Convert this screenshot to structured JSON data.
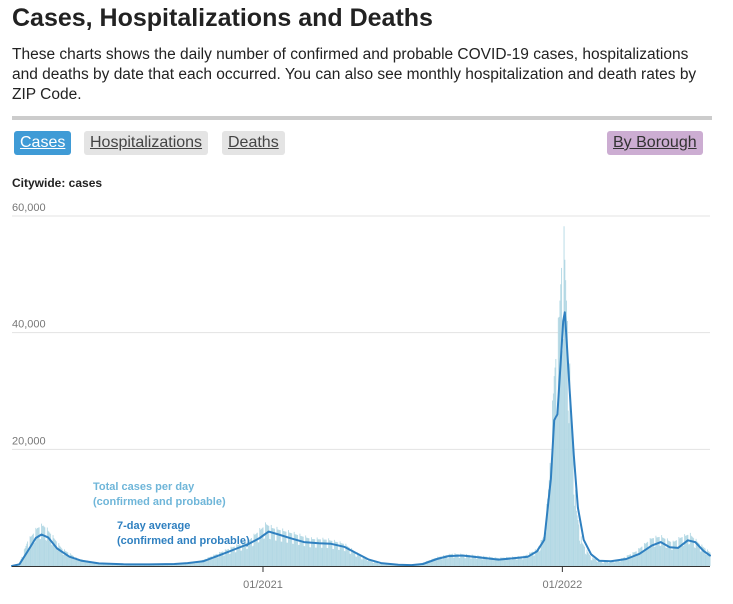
{
  "page": {
    "title": "Cases, Hospitalizations and Deaths",
    "intro": "These charts shows the daily number of confirmed and probable COVID-19 cases, hospitalizations and deaths by date that each occurred. You can also see monthly hospitalization and death rates by ZIP Code."
  },
  "tabs": {
    "cases": "Cases",
    "hospitalizations": "Hospitalizations",
    "deaths": "Deaths",
    "by_borough": "By Borough",
    "active": "cases"
  },
  "chart_title": "Citywide: cases",
  "colors": {
    "accent": "#3f9bd6",
    "line": "#2f80c0",
    "bars": "#b3d8e4",
    "bar_label": "#6fb6d9",
    "tab_inactive": "#e4e4e4",
    "tab_borough": "#ccadd2",
    "grid": "#e3e3e3"
  },
  "chart_data": {
    "type": "area",
    "x_start": "2020-03-01",
    "x_end": "2022-06-30",
    "ylim": [
      0,
      60000
    ],
    "yticks": [
      {
        "value": 20000,
        "label": "20,000"
      },
      {
        "value": 40000,
        "label": "40,000"
      },
      {
        "value": 60000,
        "label": "60,000"
      }
    ],
    "xticks": [
      {
        "date": "2021-01-01",
        "label": "01/2021"
      },
      {
        "date": "2022-01-01",
        "label": "01/2022"
      }
    ],
    "grid": true,
    "series": [
      {
        "name": "Total cases per day\n(confirmed and probable)",
        "kind": "daily_bars",
        "anchors": [
          [
            "2020-03-01",
            0
          ],
          [
            "2020-03-10",
            400
          ],
          [
            "2020-03-20",
            4000
          ],
          [
            "2020-04-01",
            6200
          ],
          [
            "2020-04-08",
            6600
          ],
          [
            "2020-04-15",
            5600
          ],
          [
            "2020-05-01",
            2800
          ],
          [
            "2020-05-20",
            1200
          ],
          [
            "2020-06-15",
            400
          ],
          [
            "2020-08-01",
            250
          ],
          [
            "2020-09-15",
            350
          ],
          [
            "2020-10-15",
            700
          ],
          [
            "2020-11-15",
            2500
          ],
          [
            "2020-12-15",
            4200
          ],
          [
            "2021-01-05",
            6800
          ],
          [
            "2021-01-12",
            6200
          ],
          [
            "2021-02-01",
            5500
          ],
          [
            "2021-03-01",
            4400
          ],
          [
            "2021-03-20",
            4300
          ],
          [
            "2021-04-10",
            3600
          ],
          [
            "2021-05-01",
            1600
          ],
          [
            "2021-05-20",
            500
          ],
          [
            "2021-06-20",
            150
          ],
          [
            "2021-07-10",
            300
          ],
          [
            "2021-08-01",
            1400
          ],
          [
            "2021-08-20",
            2000
          ],
          [
            "2021-09-10",
            1800
          ],
          [
            "2021-10-15",
            1300
          ],
          [
            "2021-11-15",
            1600
          ],
          [
            "2021-12-01",
            2700
          ],
          [
            "2021-12-10",
            5000
          ],
          [
            "2021-12-16",
            14000
          ],
          [
            "2021-12-22",
            31000
          ],
          [
            "2021-12-27",
            38000
          ],
          [
            "2022-01-02",
            54000
          ],
          [
            "2022-01-04",
            50000
          ],
          [
            "2022-01-07",
            40000
          ],
          [
            "2022-01-12",
            25000
          ],
          [
            "2022-01-18",
            9000
          ],
          [
            "2022-01-25",
            3800
          ],
          [
            "2022-02-05",
            1400
          ],
          [
            "2022-02-20",
            650
          ],
          [
            "2022-03-10",
            900
          ],
          [
            "2022-04-01",
            2400
          ],
          [
            "2022-04-20",
            4500
          ],
          [
            "2022-05-01",
            4800
          ],
          [
            "2022-05-15",
            3800
          ],
          [
            "2022-05-25",
            4600
          ],
          [
            "2022-06-05",
            5200
          ],
          [
            "2022-06-18",
            3500
          ],
          [
            "2022-06-30",
            2200
          ]
        ]
      },
      {
        "name": "7-day average\n(confirmed and probable)",
        "kind": "line",
        "points": [
          [
            "2020-03-01",
            0
          ],
          [
            "2020-03-10",
            300
          ],
          [
            "2020-03-20",
            2500
          ],
          [
            "2020-03-30",
            4800
          ],
          [
            "2020-04-06",
            5400
          ],
          [
            "2020-04-14",
            4900
          ],
          [
            "2020-04-25",
            3000
          ],
          [
            "2020-05-10",
            1600
          ],
          [
            "2020-05-25",
            900
          ],
          [
            "2020-06-15",
            450
          ],
          [
            "2020-07-15",
            300
          ],
          [
            "2020-08-15",
            280
          ],
          [
            "2020-09-15",
            350
          ],
          [
            "2020-10-01",
            500
          ],
          [
            "2020-10-20",
            800
          ],
          [
            "2020-11-10",
            1900
          ],
          [
            "2020-11-30",
            3000
          ],
          [
            "2020-12-15",
            3800
          ],
          [
            "2020-12-28",
            4800
          ],
          [
            "2021-01-08",
            5900
          ],
          [
            "2021-01-20",
            5400
          ],
          [
            "2021-02-05",
            4700
          ],
          [
            "2021-02-20",
            4100
          ],
          [
            "2021-03-10",
            3900
          ],
          [
            "2021-03-25",
            3800
          ],
          [
            "2021-04-10",
            3300
          ],
          [
            "2021-04-25",
            2200
          ],
          [
            "2021-05-10",
            1100
          ],
          [
            "2021-05-25",
            500
          ],
          [
            "2021-06-15",
            200
          ],
          [
            "2021-07-01",
            150
          ],
          [
            "2021-07-15",
            350
          ],
          [
            "2021-08-01",
            1200
          ],
          [
            "2021-08-15",
            1700
          ],
          [
            "2021-09-01",
            1800
          ],
          [
            "2021-09-20",
            1500
          ],
          [
            "2021-10-15",
            1100
          ],
          [
            "2021-11-01",
            1300
          ],
          [
            "2021-11-20",
            1600
          ],
          [
            "2021-12-01",
            2500
          ],
          [
            "2021-12-10",
            4500
          ],
          [
            "2021-12-18",
            15000
          ],
          [
            "2021-12-22",
            25000
          ],
          [
            "2021-12-26",
            26000
          ],
          [
            "2021-12-30",
            35000
          ],
          [
            "2022-01-02",
            42000
          ],
          [
            "2022-01-04",
            43500
          ],
          [
            "2022-01-06",
            39000
          ],
          [
            "2022-01-10",
            30000
          ],
          [
            "2022-01-15",
            19000
          ],
          [
            "2022-01-20",
            10000
          ],
          [
            "2022-01-27",
            4500
          ],
          [
            "2022-02-05",
            2000
          ],
          [
            "2022-02-15",
            900
          ],
          [
            "2022-03-01",
            800
          ],
          [
            "2022-03-20",
            1200
          ],
          [
            "2022-04-05",
            2100
          ],
          [
            "2022-04-20",
            3500
          ],
          [
            "2022-05-01",
            4100
          ],
          [
            "2022-05-12",
            3200
          ],
          [
            "2022-05-22",
            3100
          ],
          [
            "2022-06-03",
            4400
          ],
          [
            "2022-06-12",
            4100
          ],
          [
            "2022-06-22",
            2600
          ],
          [
            "2022-06-30",
            1800
          ]
        ]
      }
    ]
  }
}
